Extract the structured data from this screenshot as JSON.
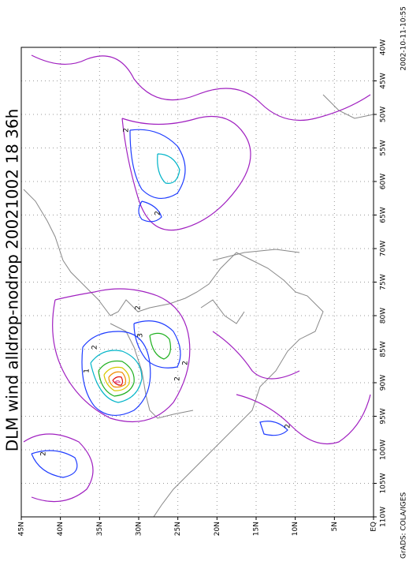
{
  "title": "DLM wind alldrop-nodrop 20021002 18 36h",
  "lat_labels": [
    "45N",
    "40N",
    "35N",
    "30N",
    "25N",
    "20N",
    "15N",
    "10N",
    "5N",
    "EQ"
  ],
  "lon_labels": [
    "40W",
    "45W",
    "50W",
    "55W",
    "60W",
    "65W",
    "70W",
    "75W",
    "80W",
    "85W",
    "90W",
    "95W",
    "100W",
    "105W",
    "110W"
  ],
  "contour_labels": [
    "2",
    "2",
    "2",
    "2",
    "3",
    "2",
    "2",
    "1",
    "2",
    "2"
  ],
  "footer": "GrADS: COLA/IGES",
  "timestamp": "2002-10-11-10:55"
}
